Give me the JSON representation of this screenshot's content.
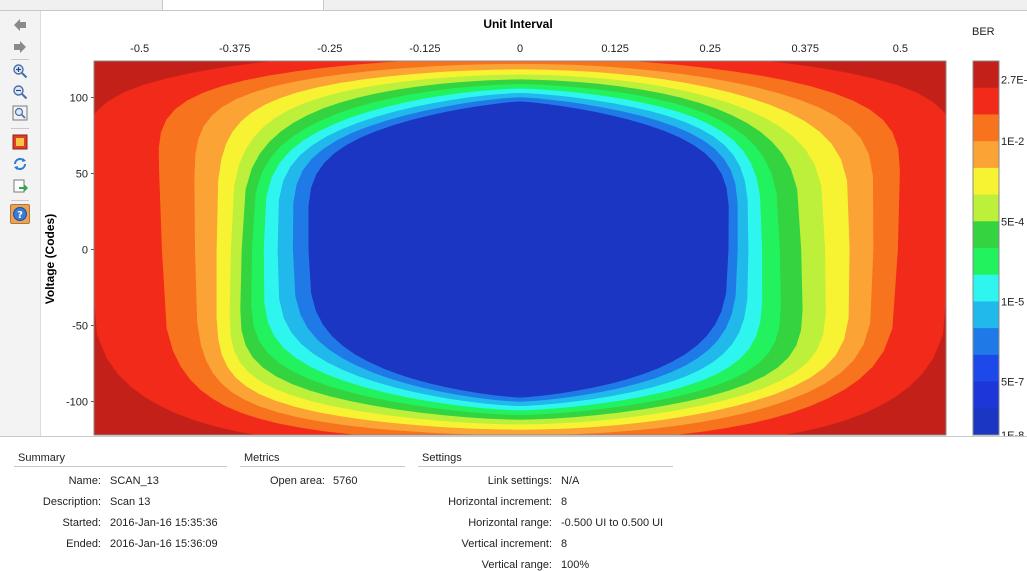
{
  "toolbar": {
    "icons": [
      "back-arrow-icon",
      "forward-arrow-icon",
      "zoom-in-icon",
      "zoom-out-icon",
      "zoom-fit-icon",
      "export-image-icon",
      "refresh-icon",
      "export-icon",
      "help-icon"
    ]
  },
  "chart_data": {
    "type": "heatmap",
    "title": "Unit Interval",
    "xlabel": "Unit Interval",
    "ylabel": "Voltage (Codes)",
    "x_ticks": [
      "-0.5",
      "-0.375",
      "-0.25",
      "-0.125",
      "0",
      "0.125",
      "0.25",
      "0.375",
      "0.5"
    ],
    "x_tick_values": [
      -0.5,
      -0.375,
      -0.25,
      -0.125,
      0,
      0.125,
      0.25,
      0.375,
      0.5
    ],
    "y_ticks": [
      "100",
      "50",
      "0",
      "-50",
      "-100"
    ],
    "y_tick_values": [
      100,
      50,
      0,
      -50,
      -100
    ],
    "xlim": [
      -0.56,
      0.56
    ],
    "ylim": [
      -122,
      124
    ],
    "legend": {
      "title": "BER",
      "labels": [
        "2.7E-",
        "1E-2",
        "5E-4",
        "1E-5",
        "5E-7",
        "1E-8"
      ],
      "colors": [
        "#c4201a",
        "#f22a1a",
        "#f8731e",
        "#fba335",
        "#f8f332",
        "#bdf03a",
        "#33d43f",
        "#22f25e",
        "#2ef6ee",
        "#21b8ec",
        "#1f7ae8",
        "#1d49ea",
        "#1d36d8",
        "#1b36c2"
      ]
    },
    "contour_levels_color": [
      "#f22a1a",
      "#f8731e",
      "#fba335",
      "#f8f332",
      "#bdf03a",
      "#33d43f",
      "#22f25e",
      "#2ef6ee",
      "#21b8ec",
      "#1f7ae8",
      "#1b36c2"
    ],
    "background_color": "#c4201a"
  },
  "summary": {
    "heading": "Summary",
    "rows": [
      {
        "label": "Name:",
        "value": "SCAN_13"
      },
      {
        "label": "Description:",
        "value": "Scan 13"
      },
      {
        "label": "Started:",
        "value": "2016-Jan-16 15:35:36"
      },
      {
        "label": "Ended:",
        "value": "2016-Jan-16 15:36:09"
      }
    ]
  },
  "metrics": {
    "heading": "Metrics",
    "rows": [
      {
        "label": "Open area:",
        "value": "5760"
      }
    ]
  },
  "settings": {
    "heading": "Settings",
    "rows": [
      {
        "label": "Link settings:",
        "value": "N/A"
      },
      {
        "label": "Horizontal increment:",
        "value": "8"
      },
      {
        "label": "Horizontal range:",
        "value": "-0.500 UI to 0.500 UI"
      },
      {
        "label": "Vertical increment:",
        "value": "8"
      },
      {
        "label": "Vertical range:",
        "value": "100%"
      }
    ]
  }
}
